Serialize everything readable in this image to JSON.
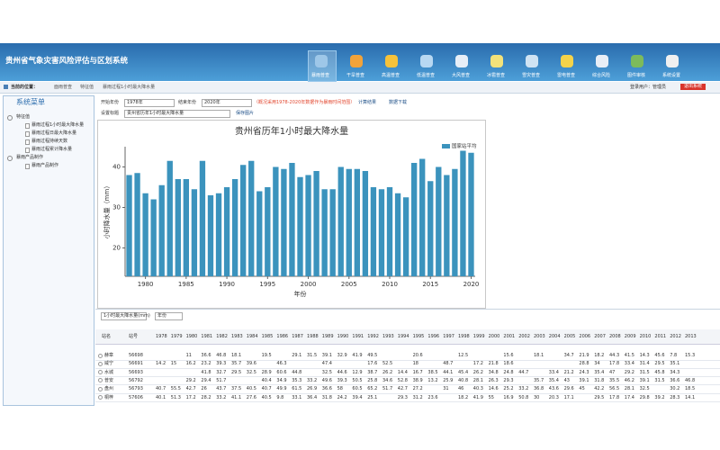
{
  "header": {
    "title": "贵州省气象灾害风险评估与区划系统",
    "nav": [
      "暴雨普查",
      "干旱普查",
      "高温普查",
      "低温普查",
      "大风普查",
      "冰雹普查",
      "雪灾普查",
      "雷电普查",
      "综合风险",
      "图件审核",
      "系统设置"
    ]
  },
  "breadcrumb": {
    "label": "当前的位置：",
    "items": [
      "面雨普查",
      "特征值",
      "暴雨过程1小时最大降水量"
    ],
    "user": "登录用户：管理员",
    "logout": "退出系统"
  },
  "sidebar": {
    "title": "系统菜单",
    "groups": [
      {
        "label": "特征值",
        "items": [
          "暴雨过程1小时最大降水量",
          "暴雨过程日最大降水量",
          "暴雨过程持续天数",
          "暴雨过程累计降水量"
        ]
      },
      {
        "label": "暴雨产品制作",
        "items": [
          "暴雨产品制作"
        ]
      }
    ]
  },
  "form": {
    "start_label": "开始年份",
    "start_value": "1978年",
    "end_label": "结束年份",
    "end_value": "2020年",
    "note": "（概况采用1978-2020年数据作为暴雨时间范围）",
    "calc": "计算结果",
    "download": "数据下载",
    "title_label": "设置标题",
    "title_value": "贵州省历年1小时最大降水量",
    "save": "保存图片"
  },
  "chart_data": {
    "type": "bar",
    "title": "贵州省历年1小时最大降水量",
    "xlabel": "年份",
    "ylabel": "小时降水量（mm）",
    "x": [
      1978,
      1979,
      1980,
      1981,
      1982,
      1983,
      1984,
      1985,
      1986,
      1987,
      1988,
      1989,
      1990,
      1991,
      1992,
      1993,
      1994,
      1995,
      1996,
      1997,
      1998,
      1999,
      2000,
      2001,
      2002,
      2003,
      2004,
      2005,
      2006,
      2007,
      2008,
      2009,
      2010,
      2011,
      2012,
      2013,
      2014,
      2015,
      2016,
      2017,
      2018,
      2019,
      2020
    ],
    "series": [
      {
        "name": "国家站平均",
        "color": "#3b93bd",
        "values": [
          38,
          38.5,
          33.5,
          32,
          35.5,
          41.5,
          37,
          37,
          34.5,
          41.5,
          33,
          33.5,
          35,
          37,
          40.5,
          41.5,
          34,
          35,
          40,
          39.5,
          41,
          37.5,
          38,
          39,
          34.5,
          34.5,
          40,
          39.5,
          39.5,
          39,
          35,
          34.5,
          35,
          33.5,
          32.5,
          41,
          42,
          36.5,
          40,
          38,
          39.5,
          44,
          43.5
        ]
      }
    ],
    "xlim": [
      1977.5,
      2020.5
    ],
    "xticks": [
      1980,
      1985,
      1990,
      1995,
      2000,
      2005,
      2010,
      2015,
      2020
    ],
    "ylim": [
      13,
      45
    ],
    "yticks": [
      20,
      30,
      40
    ],
    "legend": "upper right"
  },
  "table": {
    "element_select": "1小时最大降水量(mm)",
    "year_select": "年份",
    "columns": [
      "站名",
      "站号"
    ],
    "years": [
      1978,
      1979,
      1980,
      1981,
      1982,
      1983,
      1984,
      1985,
      1986,
      1987,
      1988,
      1989,
      1990,
      1991,
      1992,
      1993,
      1994,
      1995,
      1996,
      1997,
      1998,
      1999,
      2000,
      2001,
      2002,
      2003,
      2004,
      2005,
      2006,
      2007,
      2008,
      2009,
      2010,
      2011,
      2012,
      2013
    ],
    "rows": [
      {
        "name": "赫章",
        "id": "56698",
        "values": [
          null,
          null,
          11,
          36.6,
          46.8,
          18.1,
          null,
          19.5,
          null,
          29.1,
          31.5,
          39.1,
          32.9,
          41.9,
          49.5,
          null,
          null,
          20.6,
          null,
          null,
          12.5,
          null,
          null,
          15.6,
          null,
          18.1,
          null,
          34.7,
          21.9,
          18.2,
          44.3,
          41.5,
          14.3,
          45.6,
          7.8,
          15.3
        ]
      },
      {
        "name": "威宁",
        "id": "56691",
        "values": [
          14.2,
          15,
          16.2,
          23.2,
          39.3,
          35.7,
          39.6,
          null,
          46.3,
          null,
          null,
          47.4,
          null,
          null,
          17.6,
          52.5,
          null,
          18,
          null,
          48.7,
          null,
          17.2,
          21.8,
          18.6,
          null,
          null,
          null,
          null,
          28.8,
          34,
          17.8,
          33.4,
          31.4,
          29.5,
          35.1,
          null
        ]
      },
      {
        "name": "水城",
        "id": "56693",
        "values": [
          null,
          null,
          null,
          41.8,
          32.7,
          29.5,
          32.5,
          28.9,
          60.6,
          44.8,
          null,
          32.5,
          44.6,
          12.9,
          38.7,
          26.2,
          14.4,
          16.7,
          38.5,
          44.1,
          45.4,
          26.2,
          34.8,
          24.8,
          44.7,
          null,
          33.4,
          21.2,
          24.3,
          35.4,
          47,
          29.2,
          31.5,
          45.8,
          34.3,
          null
        ]
      },
      {
        "name": "普安",
        "id": "56792",
        "values": [
          null,
          null,
          29.2,
          29.4,
          51.7,
          null,
          null,
          40.4,
          34.9,
          35.3,
          33.2,
          49.6,
          39.3,
          50.5,
          25.8,
          34.6,
          52.8,
          38.9,
          13.2,
          25.9,
          40.8,
          28.1,
          26.3,
          29.3,
          null,
          35.7,
          35.4,
          43,
          39.1,
          31.8,
          35.5,
          46.2,
          39.1,
          31.5,
          36.6,
          46.8
        ]
      },
      {
        "name": "盘州",
        "id": "56793",
        "values": [
          40.7,
          55.5,
          42.7,
          26,
          43.7,
          37.5,
          40.5,
          40.7,
          49.9,
          61.5,
          26.9,
          36.6,
          58,
          60.5,
          65.2,
          51.7,
          42.7,
          27.2,
          null,
          31,
          46,
          40.3,
          14.6,
          25.2,
          33.2,
          36.8,
          43.6,
          29.6,
          45,
          42.2,
          56.5,
          28.1,
          32.5,
          null,
          30.2,
          18.5
        ]
      },
      {
        "name": "桐梓",
        "id": "57606",
        "values": [
          40.1,
          51.3,
          17.2,
          28.2,
          33.2,
          41.1,
          27.6,
          40.5,
          9.8,
          33.1,
          36.4,
          31.8,
          24.2,
          39.4,
          25.1,
          null,
          29.3,
          31.2,
          23.6,
          null,
          18.2,
          41.9,
          55,
          16.9,
          50.8,
          30,
          20.3,
          17.1,
          null,
          29.5,
          17.8,
          17.4,
          29.8,
          39.2,
          28.3,
          14.1
        ]
      }
    ]
  }
}
